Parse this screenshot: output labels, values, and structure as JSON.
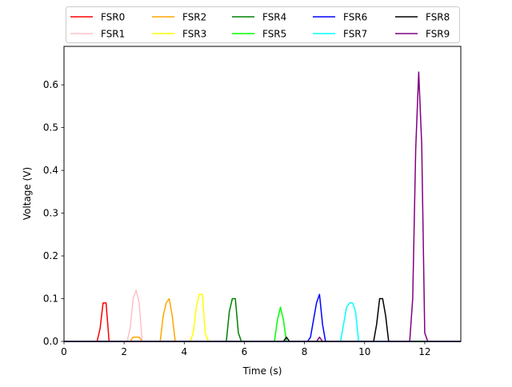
{
  "chart_data": {
    "type": "line",
    "title": "",
    "xlabel": "Time (s)",
    "ylabel": "Voltage (V)",
    "xlim": [
      0,
      13.2
    ],
    "ylim": [
      0,
      0.69
    ],
    "xticks": [
      0,
      2,
      4,
      6,
      8,
      10,
      12
    ],
    "xtick_labels": [
      "0",
      "2",
      "4",
      "6",
      "8",
      "10",
      "12"
    ],
    "yticks": [
      0.0,
      0.1,
      0.2,
      0.3,
      0.4,
      0.5,
      0.6
    ],
    "ytick_labels": [
      "0.0",
      "0.1",
      "0.2",
      "0.3",
      "0.4",
      "0.5",
      "0.6"
    ],
    "grid": false,
    "legend_placement": "top (above plot, 5 columns)",
    "series": [
      {
        "name": "FSR0",
        "color": "#ff0000",
        "x": [
          0,
          1.0,
          1.1,
          1.2,
          1.3,
          1.4,
          1.5,
          1.6,
          13.2
        ],
        "y": [
          0,
          0,
          0,
          0.03,
          0.09,
          0.09,
          0,
          0,
          0
        ]
      },
      {
        "name": "FSR1",
        "color": "#ffc0cb",
        "x": [
          0,
          2.1,
          2.2,
          2.3,
          2.4,
          2.5,
          2.6,
          13.2
        ],
        "y": [
          0,
          0,
          0.03,
          0.1,
          0.12,
          0.09,
          0,
          0
        ]
      },
      {
        "name": "FSR2",
        "color": "#ffa500",
        "x": [
          0,
          2.2,
          2.3,
          2.4,
          2.5,
          2.6,
          3.2,
          3.3,
          3.4,
          3.5,
          3.6,
          3.7,
          13.2
        ],
        "y": [
          0,
          0,
          0.01,
          0.01,
          0.01,
          0,
          0,
          0.06,
          0.09,
          0.1,
          0.06,
          0,
          0
        ]
      },
      {
        "name": "FSR3",
        "color": "#ffff00",
        "x": [
          0,
          4.2,
          4.3,
          4.4,
          4.5,
          4.6,
          4.7,
          4.8,
          13.2
        ],
        "y": [
          0,
          0,
          0.02,
          0.08,
          0.11,
          0.11,
          0.02,
          0,
          0
        ]
      },
      {
        "name": "FSR4",
        "color": "#008000",
        "x": [
          0,
          5.4,
          5.5,
          5.6,
          5.7,
          5.8,
          5.9,
          13.2
        ],
        "y": [
          0,
          0,
          0.07,
          0.1,
          0.1,
          0.02,
          0,
          0
        ]
      },
      {
        "name": "FSR5",
        "color": "#00ff00",
        "x": [
          0,
          7.0,
          7.1,
          7.2,
          7.3,
          7.4,
          7.5,
          13.2
        ],
        "y": [
          0,
          0,
          0.05,
          0.08,
          0.05,
          0,
          0,
          0
        ]
      },
      {
        "name": "FSR6",
        "color": "#0000ff",
        "x": [
          0,
          8.1,
          8.2,
          8.3,
          8.4,
          8.5,
          8.6,
          8.7,
          13.2
        ],
        "y": [
          0,
          0,
          0.01,
          0.05,
          0.09,
          0.11,
          0.04,
          0,
          0
        ]
      },
      {
        "name": "FSR7",
        "color": "#00ffff",
        "x": [
          0,
          9.2,
          9.3,
          9.4,
          9.5,
          9.6,
          9.7,
          9.8,
          13.2
        ],
        "y": [
          0,
          0,
          0.04,
          0.08,
          0.09,
          0.09,
          0.07,
          0,
          0
        ]
      },
      {
        "name": "FSR8",
        "color": "#000000",
        "x": [
          0,
          7.3,
          7.4,
          7.5,
          10.3,
          10.4,
          10.5,
          10.6,
          10.7,
          10.8,
          13.2
        ],
        "y": [
          0,
          0,
          0.01,
          0,
          0,
          0.04,
          0.1,
          0.1,
          0.06,
          0,
          0
        ]
      },
      {
        "name": "FSR9",
        "color": "#800080",
        "x": [
          0,
          8.4,
          8.5,
          8.6,
          11.4,
          11.5,
          11.6,
          11.7,
          11.8,
          11.9,
          12.0,
          12.1,
          13.2
        ],
        "y": [
          0,
          0,
          0.01,
          0,
          0,
          0,
          0.1,
          0.45,
          0.63,
          0.46,
          0.02,
          0,
          0
        ]
      }
    ]
  }
}
